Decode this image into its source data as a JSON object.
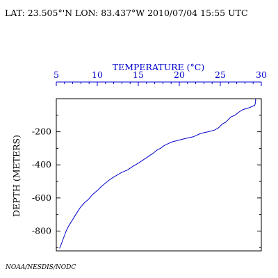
{
  "header": {
    "text": "LAT: 23.505°'N LON: 83.437°W 2010/07/04 15:55 UTC"
  },
  "credit": "NOAA/NESDIS/NODC",
  "chart_data": {
    "type": "line",
    "title": "",
    "xlabel": "TEMPERATURE (°C)",
    "ylabel": "DEPTH (METERS)",
    "xlim": [
      5,
      30
    ],
    "ylim": [
      -920,
      0
    ],
    "x_axis_position": "top",
    "grid": false,
    "x_ticks": [
      "5",
      "10",
      "15",
      "20",
      "25",
      "30"
    ],
    "y_ticks": [
      "-200",
      "-400",
      "-600",
      "-800"
    ],
    "x_tick_values": [
      5,
      10,
      15,
      20,
      25,
      30
    ],
    "y_tick_values": [
      -200,
      -400,
      -600,
      -800
    ],
    "colors": {
      "series": "#0000cc",
      "top_axis": "#0000cc",
      "left_axis": "#000000"
    },
    "series": [
      {
        "x": [
          29.3,
          29.3,
          29.2,
          28.5,
          27.8,
          27.3,
          26.8,
          26.3,
          25.7,
          25.2,
          24.8,
          24.3,
          23.5,
          22.6,
          21.7,
          20.8,
          20.0,
          19.2,
          18.7,
          18.1,
          17.7,
          17.3,
          16.8,
          16.2,
          15.6,
          15.0,
          14.3,
          13.7,
          13.0,
          12.3,
          11.8,
          11.5,
          11.0,
          10.4,
          10.0,
          9.4,
          8.9,
          8.4,
          7.9,
          7.5,
          7.0,
          6.5,
          6.2,
          5.9,
          5.6,
          5.4
        ],
        "y": [
          0,
          -20,
          -40,
          -55,
          -65,
          -80,
          -100,
          -110,
          -140,
          -155,
          -175,
          -190,
          -200,
          -210,
          -230,
          -240,
          -250,
          -260,
          -270,
          -285,
          -300,
          -310,
          -330,
          -350,
          -370,
          -390,
          -410,
          -430,
          -445,
          -465,
          -480,
          -490,
          -510,
          -535,
          -555,
          -580,
          -610,
          -630,
          -660,
          -690,
          -730,
          -770,
          -800,
          -840,
          -880,
          -905
        ]
      }
    ]
  }
}
